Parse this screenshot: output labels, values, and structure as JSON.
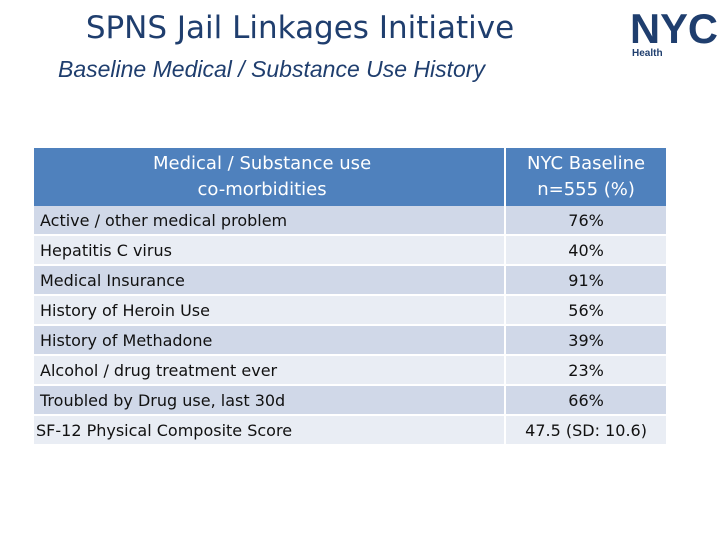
{
  "header": {
    "title": "SPNS Jail Linkages Initiative",
    "subtitle": "Baseline Medical / Substance Use History"
  },
  "logo": {
    "wordmark": "NYC",
    "label": "Health",
    "color": "#1f3e6e"
  },
  "table": {
    "headers": {
      "col1_line1": "Medical / Substance use",
      "col1_line2": "co-morbidities",
      "col2_line1": "NYC Baseline",
      "col2_line2": "n=555 (%)"
    },
    "rows": [
      {
        "label": "Active / other medical problem",
        "value": "76%"
      },
      {
        "label": "Hepatitis C virus",
        "value": "40%"
      },
      {
        "label": "Medical Insurance",
        "value": "91%"
      },
      {
        "label": "History of Heroin Use",
        "value": "56%"
      },
      {
        "label": "History of Methadone",
        "value": "39%"
      },
      {
        "label": "Alcohol / drug treatment ever",
        "value": "23%"
      },
      {
        "label": "Troubled by Drug use, last 30d",
        "value": "66%"
      },
      {
        "label": "SF-12 Physical Composite Score",
        "value": "47.5 (SD: 10.6)"
      }
    ],
    "colors": {
      "header": "#4f81bd",
      "row_dark": "#d0d8e8",
      "row_light": "#e9edf4"
    }
  }
}
